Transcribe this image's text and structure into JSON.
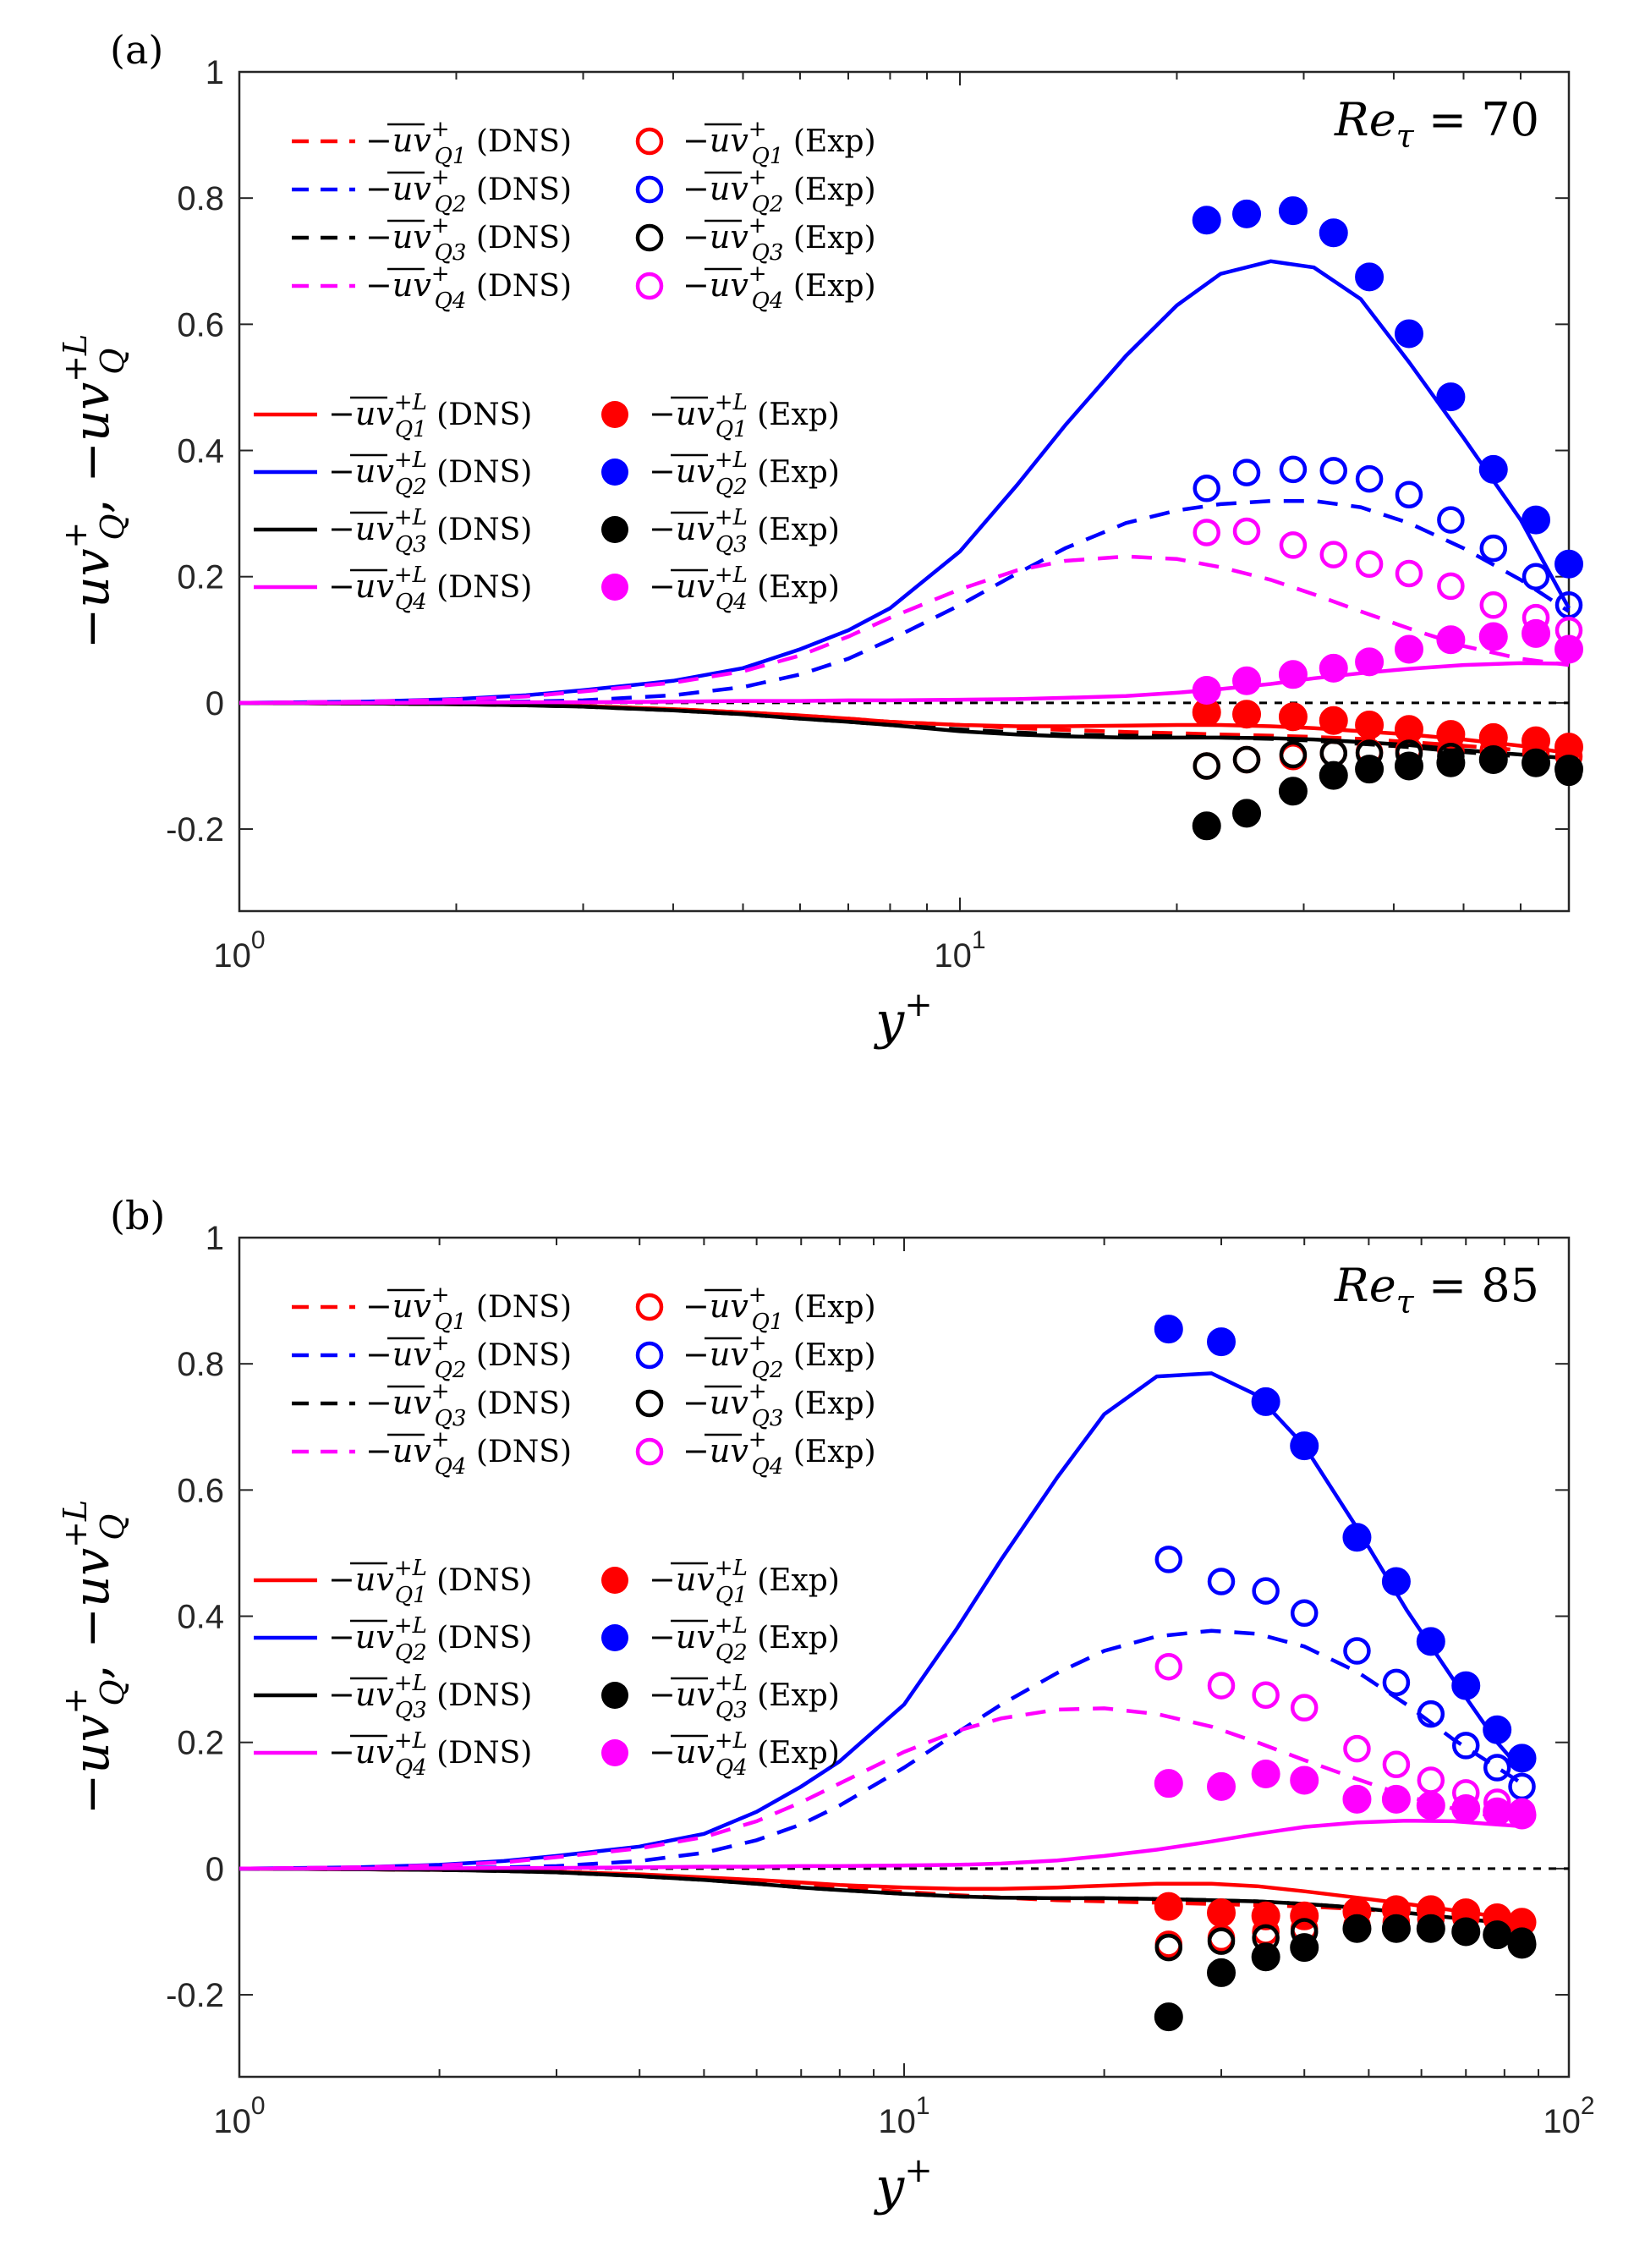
{
  "colors": {
    "Q1": "#ff0000",
    "Q2": "#0000ff",
    "Q3": "#000000",
    "Q4": "#ff00ff"
  },
  "chart_data": [
    {
      "type": "line",
      "panel_label": "(a)",
      "annotation_lhs": "Re",
      "annotation_sub": "τ",
      "annotation_rhs": "= 70",
      "xlabel": "y+",
      "ylabel": "−uv⁺_Q, −uv⁺ᴸ_Q",
      "xscale": "log",
      "xlim": [
        1,
        70
      ],
      "ylim": [
        -0.33,
        1
      ],
      "x_ticks": [
        {
          "value": 1,
          "base": "10",
          "exp": "0"
        },
        {
          "value": 10,
          "base": "10",
          "exp": "1"
        }
      ],
      "y_ticks": [
        {
          "value": -0.2,
          "label": "-0.2"
        },
        {
          "value": 0,
          "label": "0"
        },
        {
          "value": 0.2,
          "label": "0.2"
        },
        {
          "value": 0.4,
          "label": "0.4"
        },
        {
          "value": 0.6,
          "label": "0.6"
        },
        {
          "value": 0.8,
          "label": "0.8"
        },
        {
          "value": 1,
          "label": "1"
        }
      ],
      "zero_line": true,
      "legend_top": [
        {
          "series": "Q1",
          "dns": "−uv⁺Q1 (DNS)",
          "exp": "−uv⁺Q1 (Exp)"
        },
        {
          "series": "Q2",
          "dns": "−uv⁺Q2 (DNS)",
          "exp": "−uv⁺Q2 (Exp)"
        },
        {
          "series": "Q3",
          "dns": "−uv⁺Q3 (DNS)",
          "exp": "−uv⁺Q3 (Exp)"
        },
        {
          "series": "Q4",
          "dns": "−uv⁺Q4 (DNS)",
          "exp": "−uv⁺Q4 (Exp)"
        }
      ],
      "legend_bottom": [
        {
          "series": "Q1",
          "dns": "−uv⁺ᴸQ1 (DNS)",
          "exp": "−uv⁺ᴸQ1 (Exp)"
        },
        {
          "series": "Q2",
          "dns": "−uv⁺ᴸQ2 (DNS)",
          "exp": "−uv⁺ᴸQ2 (Exp)"
        },
        {
          "series": "Q3",
          "dns": "−uv⁺ᴸQ3 (DNS)",
          "exp": "−uv⁺ᴸQ3 (Exp)"
        },
        {
          "series": "Q4",
          "dns": "−uv⁺ᴸQ4 (DNS)",
          "exp": "−uv⁺ᴸQ4 (Exp)"
        }
      ],
      "dns_dashed": {
        "x": [
          1,
          1.5,
          2,
          2.5,
          3,
          4,
          5,
          6,
          7,
          8,
          10,
          12,
          14,
          17,
          20,
          23,
          27,
          31,
          36,
          42,
          50,
          60,
          70
        ],
        "Q1": [
          0,
          -0.001,
          -0.002,
          -0.003,
          -0.005,
          -0.01,
          -0.015,
          -0.02,
          -0.025,
          -0.03,
          -0.035,
          -0.04,
          -0.043,
          -0.046,
          -0.048,
          -0.05,
          -0.052,
          -0.054,
          -0.057,
          -0.062,
          -0.068,
          -0.075,
          -0.085
        ],
        "Q2": [
          0,
          0.0005,
          0.001,
          0.002,
          0.004,
          0.012,
          0.025,
          0.045,
          0.07,
          0.1,
          0.155,
          0.205,
          0.245,
          0.285,
          0.305,
          0.315,
          0.32,
          0.32,
          0.31,
          0.285,
          0.245,
          0.195,
          0.145
        ],
        "Q3": [
          0,
          -0.001,
          -0.002,
          -0.004,
          -0.006,
          -0.012,
          -0.018,
          -0.025,
          -0.03,
          -0.035,
          -0.042,
          -0.047,
          -0.05,
          -0.052,
          -0.053,
          -0.055,
          -0.057,
          -0.06,
          -0.065,
          -0.07,
          -0.078,
          -0.085,
          -0.09
        ],
        "Q4": [
          0,
          0.002,
          0.005,
          0.01,
          0.018,
          0.032,
          0.05,
          0.075,
          0.105,
          0.135,
          0.18,
          0.21,
          0.225,
          0.232,
          0.228,
          0.215,
          0.195,
          0.172,
          0.145,
          0.118,
          0.09,
          0.07,
          0.06
        ]
      },
      "dns_solid": {
        "x": [
          1,
          1.5,
          2,
          2.5,
          3,
          4,
          5,
          6,
          7,
          8,
          10,
          12,
          14,
          17,
          20,
          23,
          27,
          31,
          36,
          42,
          50,
          60,
          70
        ],
        "Q1": [
          0,
          -0.001,
          -0.002,
          -0.003,
          -0.005,
          -0.01,
          -0.015,
          -0.02,
          -0.025,
          -0.03,
          -0.035,
          -0.037,
          -0.037,
          -0.036,
          -0.035,
          -0.035,
          -0.037,
          -0.04,
          -0.045,
          -0.05,
          -0.058,
          -0.068,
          -0.08
        ],
        "Q2": [
          0,
          0.002,
          0.006,
          0.012,
          0.02,
          0.035,
          0.055,
          0.085,
          0.115,
          0.15,
          0.24,
          0.345,
          0.44,
          0.55,
          0.63,
          0.68,
          0.7,
          0.69,
          0.64,
          0.54,
          0.42,
          0.29,
          0.15
        ],
        "Q3": [
          0,
          -0.001,
          -0.002,
          -0.004,
          -0.006,
          -0.012,
          -0.018,
          -0.025,
          -0.03,
          -0.035,
          -0.045,
          -0.05,
          -0.053,
          -0.055,
          -0.055,
          -0.055,
          -0.056,
          -0.058,
          -0.062,
          -0.067,
          -0.075,
          -0.082,
          -0.088
        ],
        "Q4": [
          0,
          0,
          0.0005,
          0.001,
          0.001,
          0.002,
          0.003,
          0.003,
          0.004,
          0.004,
          0.005,
          0.006,
          0.008,
          0.011,
          0.016,
          0.022,
          0.03,
          0.039,
          0.047,
          0.054,
          0.06,
          0.063,
          0.062
        ]
      },
      "exp_open": {
        "x": [
          22,
          25,
          29,
          33,
          37,
          42,
          48,
          55,
          63,
          70
        ],
        "Q1": [
          -0.1,
          -0.09,
          -0.085,
          -0.08,
          -0.078,
          -0.075,
          -0.075,
          -0.075,
          -0.078,
          -0.085
        ],
        "Q2": [
          0.34,
          0.365,
          0.37,
          0.368,
          0.355,
          0.33,
          0.29,
          0.245,
          0.2,
          0.155
        ],
        "Q3": [
          -0.1,
          -0.09,
          -0.082,
          -0.08,
          -0.08,
          -0.08,
          -0.085,
          -0.09,
          -0.095,
          -0.11
        ],
        "Q4": [
          0.27,
          0.272,
          0.25,
          0.235,
          0.22,
          0.205,
          0.185,
          0.155,
          0.135,
          0.115
        ]
      },
      "exp_filled": {
        "x": [
          22,
          25,
          29,
          33,
          37,
          42,
          48,
          55,
          63,
          70
        ],
        "Q1": [
          -0.015,
          -0.018,
          -0.022,
          -0.028,
          -0.035,
          -0.042,
          -0.05,
          -0.055,
          -0.06,
          -0.07
        ],
        "Q2": [
          0.765,
          0.775,
          0.78,
          0.745,
          0.675,
          0.585,
          0.485,
          0.37,
          0.29,
          0.22
        ],
        "Q3": [
          -0.195,
          -0.175,
          -0.14,
          -0.115,
          -0.105,
          -0.1,
          -0.095,
          -0.09,
          -0.095,
          -0.105
        ],
        "Q4": [
          0.02,
          0.035,
          0.045,
          0.055,
          0.065,
          0.085,
          0.1,
          0.105,
          0.11,
          0.085
        ]
      }
    },
    {
      "type": "line",
      "panel_label": "(b)",
      "annotation_lhs": "Re",
      "annotation_sub": "τ",
      "annotation_rhs": "= 85",
      "xlabel": "y+",
      "ylabel": "−uv⁺_Q, −uv⁺ᴸ_Q",
      "xscale": "log",
      "xlim": [
        1,
        100
      ],
      "ylim": [
        -0.33,
        1
      ],
      "x_ticks": [
        {
          "value": 1,
          "base": "10",
          "exp": "0"
        },
        {
          "value": 10,
          "base": "10",
          "exp": "1"
        },
        {
          "value": 100,
          "base": "10",
          "exp": "2"
        }
      ],
      "y_ticks": [
        {
          "value": -0.2,
          "label": "-0.2"
        },
        {
          "value": 0,
          "label": "0"
        },
        {
          "value": 0.2,
          "label": "0.2"
        },
        {
          "value": 0.4,
          "label": "0.4"
        },
        {
          "value": 0.6,
          "label": "0.6"
        },
        {
          "value": 0.8,
          "label": "0.8"
        },
        {
          "value": 1,
          "label": "1"
        }
      ],
      "zero_line": true,
      "legend_top": [
        {
          "series": "Q1",
          "dns": "−uv⁺Q1 (DNS)",
          "exp": "−uv⁺Q1 (Exp)"
        },
        {
          "series": "Q2",
          "dns": "−uv⁺Q2 (DNS)",
          "exp": "−uv⁺Q2 (Exp)"
        },
        {
          "series": "Q3",
          "dns": "−uv⁺Q3 (DNS)",
          "exp": "−uv⁺Q3 (Exp)"
        },
        {
          "series": "Q4",
          "dns": "−uv⁺Q4 (DNS)",
          "exp": "−uv⁺Q4 (Exp)"
        }
      ],
      "legend_bottom": [
        {
          "series": "Q1",
          "dns": "−uv⁺ᴸQ1 (DNS)",
          "exp": "−uv⁺ᴸQ1 (Exp)"
        },
        {
          "series": "Q2",
          "dns": "−uv⁺ᴸQ2 (DNS)",
          "exp": "−uv⁺ᴸQ2 (Exp)"
        },
        {
          "series": "Q3",
          "dns": "−uv⁺ᴸQ3 (DNS)",
          "exp": "−uv⁺ᴸQ3 (Exp)"
        },
        {
          "series": "Q4",
          "dns": "−uv⁺ᴸQ4 (DNS)",
          "exp": "−uv⁺ᴸQ4 (Exp)"
        }
      ],
      "dns_dashed": {
        "x": [
          1,
          1.5,
          2,
          2.5,
          3,
          4,
          5,
          6,
          7,
          8,
          10,
          12,
          14,
          17,
          20,
          24,
          29,
          34,
          40,
          48,
          57,
          67,
          78,
          85
        ],
        "Q1": [
          0,
          -0.001,
          -0.002,
          -0.003,
          -0.005,
          -0.01,
          -0.015,
          -0.02,
          -0.025,
          -0.03,
          -0.037,
          -0.042,
          -0.046,
          -0.05,
          -0.052,
          -0.054,
          -0.056,
          -0.058,
          -0.06,
          -0.064,
          -0.069,
          -0.075,
          -0.082,
          -0.086
        ],
        "Q2": [
          0,
          0.0005,
          0.001,
          0.002,
          0.004,
          0.012,
          0.025,
          0.045,
          0.07,
          0.1,
          0.16,
          0.215,
          0.26,
          0.31,
          0.345,
          0.368,
          0.377,
          0.372,
          0.352,
          0.312,
          0.26,
          0.205,
          0.16,
          0.135
        ],
        "Q3": [
          0,
          -0.001,
          -0.002,
          -0.004,
          -0.006,
          -0.012,
          -0.018,
          -0.024,
          -0.03,
          -0.034,
          -0.04,
          -0.044,
          -0.046,
          -0.047,
          -0.047,
          -0.048,
          -0.05,
          -0.052,
          -0.056,
          -0.062,
          -0.07,
          -0.078,
          -0.085,
          -0.088
        ],
        "Q4": [
          0,
          0.002,
          0.005,
          0.01,
          0.018,
          0.032,
          0.05,
          0.075,
          0.105,
          0.135,
          0.185,
          0.218,
          0.238,
          0.252,
          0.254,
          0.245,
          0.225,
          0.2,
          0.172,
          0.142,
          0.115,
          0.095,
          0.082,
          0.077
        ]
      },
      "dns_solid": {
        "x": [
          1,
          1.5,
          2,
          2.5,
          3,
          4,
          5,
          6,
          7,
          8,
          10,
          12,
          14,
          17,
          20,
          24,
          29,
          34,
          40,
          48,
          57,
          67,
          78,
          85
        ],
        "Q1": [
          0,
          -0.001,
          -0.002,
          -0.003,
          -0.005,
          -0.009,
          -0.014,
          -0.018,
          -0.022,
          -0.026,
          -0.03,
          -0.032,
          -0.032,
          -0.03,
          -0.027,
          -0.024,
          -0.024,
          -0.028,
          -0.036,
          -0.046,
          -0.056,
          -0.066,
          -0.076,
          -0.081
        ],
        "Q2": [
          0,
          0.002,
          0.006,
          0.012,
          0.02,
          0.035,
          0.055,
          0.09,
          0.13,
          0.17,
          0.26,
          0.38,
          0.49,
          0.62,
          0.72,
          0.78,
          0.785,
          0.75,
          0.67,
          0.54,
          0.41,
          0.3,
          0.2,
          0.155
        ],
        "Q3": [
          0,
          -0.001,
          -0.002,
          -0.004,
          -0.006,
          -0.012,
          -0.018,
          -0.024,
          -0.03,
          -0.034,
          -0.04,
          -0.044,
          -0.046,
          -0.047,
          -0.047,
          -0.048,
          -0.05,
          -0.052,
          -0.056,
          -0.062,
          -0.07,
          -0.078,
          -0.085,
          -0.088
        ],
        "Q4": [
          0,
          0,
          0.0005,
          0.001,
          0.001,
          0.002,
          0.003,
          0.003,
          0.004,
          0.004,
          0.005,
          0.006,
          0.008,
          0.013,
          0.02,
          0.03,
          0.043,
          0.055,
          0.066,
          0.073,
          0.076,
          0.075,
          0.07,
          0.067
        ]
      },
      "exp_open": {
        "x": [
          25,
          30,
          35,
          40,
          48,
          55,
          62,
          70,
          78,
          85
        ],
        "Q1": [
          -0.12,
          -0.11,
          -0.1,
          -0.095,
          -0.09,
          -0.085,
          -0.08,
          -0.078,
          -0.08,
          -0.085
        ],
        "Q2": [
          0.49,
          0.455,
          0.44,
          0.405,
          0.345,
          0.295,
          0.245,
          0.195,
          0.16,
          0.13
        ],
        "Q3": [
          -0.125,
          -0.115,
          -0.11,
          -0.1,
          -0.095,
          -0.095,
          -0.095,
          -0.1,
          -0.105,
          -0.115
        ],
        "Q4": [
          0.32,
          0.29,
          0.275,
          0.255,
          0.19,
          0.165,
          0.14,
          0.12,
          0.105,
          0.09
        ]
      },
      "exp_filled": {
        "x": [
          25,
          30,
          35,
          40,
          48,
          55,
          62,
          70,
          78,
          85
        ],
        "Q1": [
          -0.06,
          -0.07,
          -0.075,
          -0.075,
          -0.068,
          -0.065,
          -0.065,
          -0.07,
          -0.078,
          -0.085
        ],
        "Q2": [
          0.855,
          0.835,
          0.74,
          0.67,
          0.525,
          0.455,
          0.36,
          0.29,
          0.22,
          0.175
        ],
        "Q3": [
          -0.235,
          -0.165,
          -0.14,
          -0.125,
          -0.095,
          -0.095,
          -0.095,
          -0.1,
          -0.105,
          -0.12
        ],
        "Q4": [
          0.135,
          0.13,
          0.15,
          0.14,
          0.11,
          0.11,
          0.1,
          0.095,
          0.09,
          0.085
        ]
      }
    }
  ]
}
